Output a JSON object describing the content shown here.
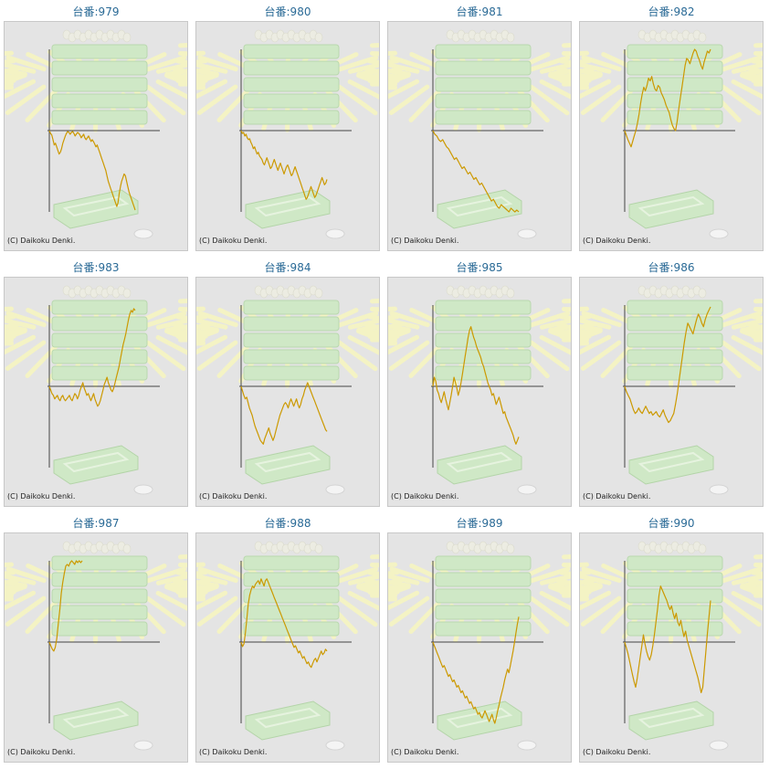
{
  "colors": {
    "title": "#2a6a96",
    "line": "#cc9900",
    "axis": "#444444",
    "panel_bg": "#e4e4e4",
    "machine": "#cfe8c6",
    "rays": "#f4f3c4"
  },
  "icons": [
    "pachinko-machine-icon",
    "sunburst-icon",
    "ball-tray-icon",
    "coin-icon"
  ],
  "chart_data": [
    {
      "type": "line",
      "title": "台番:979",
      "copyright": "(C) Daikoku Denki.",
      "y": [
        0,
        -3,
        -5,
        -10,
        -16,
        -14,
        -18,
        -22,
        -26,
        -24,
        -20,
        -14,
        -10,
        -6,
        -3,
        -1,
        -2,
        -4,
        -2,
        -1,
        -3,
        -6,
        -4,
        -2,
        -3,
        -5,
        -8,
        -6,
        -4,
        -8,
        -10,
        -8,
        -6,
        -9,
        -12,
        -10,
        -12,
        -15,
        -18,
        -16,
        -20,
        -24,
        -28,
        -32,
        -36,
        -40,
        -44,
        -50,
        -56,
        -60,
        -64,
        -68,
        -72,
        -76,
        -80,
        -84,
        -80,
        -70,
        -62,
        -56,
        -52,
        -48,
        -50,
        -56,
        -62,
        -68,
        -72,
        -76,
        -80,
        -84,
        -88
      ]
    },
    {
      "type": "line",
      "title": "台番:980",
      "copyright": "(C) Daikoku Denki.",
      "y": [
        0,
        -3,
        -2,
        -6,
        -4,
        -8,
        -10,
        -9,
        -13,
        -16,
        -20,
        -18,
        -22,
        -26,
        -24,
        -28,
        -30,
        -32,
        -36,
        -38,
        -34,
        -30,
        -34,
        -38,
        -42,
        -40,
        -36,
        -32,
        -36,
        -40,
        -44,
        -40,
        -36,
        -40,
        -44,
        -48,
        -44,
        -40,
        -38,
        -42,
        -46,
        -50,
        -48,
        -44,
        -40,
        -44,
        -48,
        -52,
        -56,
        -60,
        -64,
        -68,
        -72,
        -76,
        -74,
        -70,
        -66,
        -62,
        -66,
        -70,
        -74,
        -72,
        -68,
        -64,
        -60,
        -56,
        -52,
        -56,
        -60,
        -58,
        -54
      ]
    },
    {
      "type": "line",
      "title": "台番:981",
      "copyright": "(C) Daikoku Denki.",
      "y": [
        0,
        -4,
        -6,
        -10,
        -12,
        -10,
        -14,
        -18,
        -20,
        -24,
        -28,
        -32,
        -30,
        -34,
        -38,
        -42,
        -40,
        -44,
        -48,
        -46,
        -50,
        -54,
        -52,
        -56,
        -60,
        -58,
        -62,
        -66,
        -70,
        -74,
        -78,
        -76,
        -80,
        -84,
        -86,
        -82,
        -84,
        -86,
        -88,
        -90,
        -86,
        -88,
        -90,
        -88,
        -90
      ]
    },
    {
      "type": "line",
      "title": "台番:982",
      "copyright": "(C) Daikoku Denki.",
      "y": [
        0,
        -5,
        -10,
        -14,
        -18,
        -12,
        -6,
        0,
        8,
        18,
        30,
        40,
        48,
        44,
        50,
        58,
        55,
        60,
        52,
        46,
        44,
        50,
        48,
        42,
        38,
        34,
        28,
        24,
        20,
        12,
        6,
        2,
        0,
        10,
        24,
        36,
        48,
        60,
        72,
        80,
        78,
        74,
        80,
        86,
        90,
        88,
        82,
        78,
        72,
        68,
        76,
        82,
        88,
        86,
        90
      ]
    },
    {
      "type": "line",
      "title": "台番:983",
      "copyright": "(C) Daikoku Denki.",
      "y": [
        0,
        -4,
        -8,
        -10,
        -14,
        -12,
        -10,
        -14,
        -16,
        -12,
        -10,
        -14,
        -16,
        -14,
        -12,
        -10,
        -14,
        -16,
        -12,
        -8,
        -10,
        -14,
        -10,
        -4,
        0,
        4,
        -2,
        -6,
        -10,
        -8,
        -12,
        -16,
        -12,
        -8,
        -14,
        -18,
        -22,
        -20,
        -16,
        -10,
        -4,
        2,
        6,
        10,
        4,
        0,
        -4,
        -6,
        -2,
        4,
        10,
        16,
        22,
        30,
        38,
        46,
        52,
        58,
        66,
        74,
        80,
        84,
        82,
        86,
        84
      ]
    },
    {
      "type": "line",
      "title": "台番:984",
      "copyright": "(C) Daikoku Denki.",
      "y": [
        0,
        -5,
        -10,
        -14,
        -12,
        -18,
        -24,
        -28,
        -32,
        -38,
        -44,
        -48,
        -52,
        -56,
        -60,
        -62,
        -64,
        -58,
        -54,
        -50,
        -46,
        -52,
        -56,
        -60,
        -56,
        -50,
        -44,
        -38,
        -32,
        -28,
        -24,
        -20,
        -18,
        -20,
        -24,
        -18,
        -14,
        -18,
        -22,
        -18,
        -14,
        -20,
        -24,
        -20,
        -14,
        -10,
        -4,
        0,
        4,
        0,
        -4,
        -8,
        -12,
        -16,
        -20,
        -24,
        -28,
        -32,
        -36,
        -40,
        -44,
        -48,
        -50
      ]
    },
    {
      "type": "line",
      "title": "台番:985",
      "copyright": "(C) Daikoku Denki.",
      "y": [
        0,
        10,
        6,
        -4,
        -8,
        -14,
        -18,
        -12,
        -6,
        -14,
        -20,
        -26,
        -18,
        -10,
        0,
        10,
        4,
        -2,
        -10,
        -4,
        4,
        14,
        24,
        34,
        44,
        54,
        62,
        66,
        60,
        54,
        50,
        44,
        40,
        36,
        32,
        26,
        22,
        16,
        10,
        4,
        0,
        -4,
        -10,
        -8,
        -14,
        -20,
        -16,
        -12,
        -18,
        -24,
        -30,
        -28,
        -34,
        -38,
        -42,
        -46,
        -50,
        -54,
        -60,
        -64,
        -60,
        -56
      ]
    },
    {
      "type": "line",
      "title": "台番:986",
      "copyright": "(C) Daikoku Denki.",
      "y": [
        0,
        -6,
        -10,
        -14,
        -20,
        -26,
        -30,
        -28,
        -24,
        -28,
        -30,
        -26,
        -22,
        -26,
        -30,
        -28,
        -32,
        -30,
        -28,
        -32,
        -34,
        -30,
        -26,
        -32,
        -36,
        -40,
        -38,
        -34,
        -30,
        -20,
        -8,
        6,
        20,
        34,
        48,
        60,
        70,
        66,
        62,
        58,
        66,
        74,
        80,
        76,
        70,
        66,
        74,
        80,
        84,
        88
      ]
    },
    {
      "type": "line",
      "title": "台番:987",
      "copyright": "(C) Daikoku Denki.",
      "y": [
        0,
        -4,
        -8,
        -10,
        -6,
        4,
        20,
        36,
        54,
        66,
        76,
        84,
        86,
        84,
        88,
        90,
        88,
        86,
        90,
        88,
        90,
        88,
        90
      ]
    },
    {
      "type": "line",
      "title": "台番:988",
      "copyright": "(C) Daikoku Denki.",
      "y": [
        0,
        -5,
        -2,
        10,
        26,
        42,
        52,
        58,
        62,
        60,
        64,
        66,
        68,
        64,
        70,
        66,
        62,
        68,
        70,
        66,
        62,
        58,
        54,
        50,
        46,
        42,
        38,
        34,
        30,
        26,
        22,
        18,
        14,
        10,
        6,
        2,
        -2,
        -6,
        -4,
        -8,
        -12,
        -10,
        -14,
        -18,
        -16,
        -20,
        -24,
        -22,
        -26,
        -28,
        -24,
        -20,
        -18,
        -22,
        -18,
        -14,
        -10,
        -14,
        -12,
        -8,
        -10
      ]
    },
    {
      "type": "line",
      "title": "台番:989",
      "copyright": "(C) Daikoku Denki.",
      "y": [
        0,
        -4,
        -8,
        -12,
        -16,
        -20,
        -24,
        -28,
        -26,
        -30,
        -34,
        -38,
        -36,
        -40,
        -44,
        -42,
        -46,
        -50,
        -48,
        -52,
        -56,
        -54,
        -58,
        -62,
        -60,
        -64,
        -68,
        -66,
        -70,
        -74,
        -72,
        -76,
        -80,
        -78,
        -82,
        -84,
        -80,
        -76,
        -80,
        -84,
        -88,
        -84,
        -80,
        -86,
        -90,
        -84,
        -76,
        -70,
        -62,
        -56,
        -50,
        -42,
        -36,
        -30,
        -34,
        -26,
        -18,
        -10,
        0,
        10,
        20,
        28
      ]
    },
    {
      "type": "line",
      "title": "台番:990",
      "copyright": "(C) Daikoku Denki.",
      "y": [
        0,
        -6,
        -12,
        -20,
        -28,
        -36,
        -44,
        -50,
        -40,
        -28,
        -16,
        -4,
        8,
        -2,
        -10,
        -16,
        -20,
        -14,
        -4,
        8,
        22,
        36,
        52,
        62,
        58,
        54,
        50,
        46,
        40,
        36,
        40,
        32,
        26,
        32,
        22,
        18,
        24,
        14,
        6,
        12,
        2,
        -4,
        -10,
        -16,
        -22,
        -28,
        -34,
        -40,
        -48,
        -56,
        -50,
        -30,
        -10,
        10,
        28,
        46
      ]
    }
  ]
}
